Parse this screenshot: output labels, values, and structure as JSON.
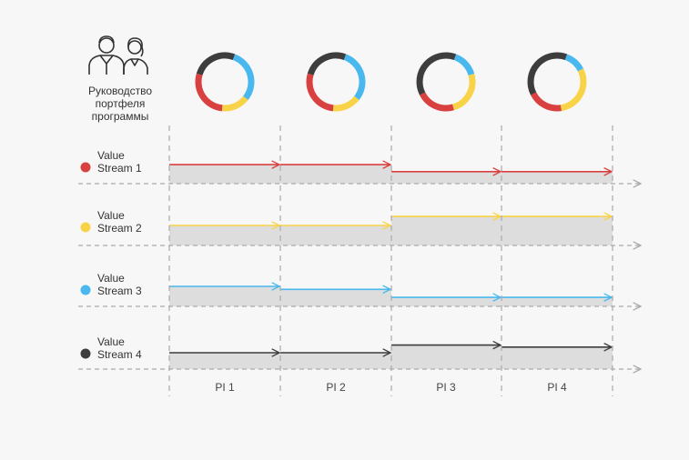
{
  "management": {
    "icon": "business-people-icon",
    "label_lines": [
      "Руководство",
      "портфеля",
      "программы"
    ]
  },
  "colors": {
    "red": "#d94040",
    "yellow": "#f9d347",
    "blue": "#48b8ee",
    "dark": "#3d3d3d",
    "band": "#dddddd",
    "dash": "#aaaaaa"
  },
  "pi_labels": [
    "PI 1",
    "PI 2",
    "PI 3",
    "PI 4"
  ],
  "donuts": [
    {
      "segments": [
        {
          "color": "blue",
          "value": 30
        },
        {
          "color": "yellow",
          "value": 16
        },
        {
          "color": "red",
          "value": 28
        },
        {
          "color": "dark",
          "value": 26
        }
      ]
    },
    {
      "segments": [
        {
          "color": "blue",
          "value": 30
        },
        {
          "color": "yellow",
          "value": 16
        },
        {
          "color": "red",
          "value": 28
        },
        {
          "color": "dark",
          "value": 26
        }
      ]
    },
    {
      "segments": [
        {
          "color": "blue",
          "value": 15
        },
        {
          "color": "yellow",
          "value": 25
        },
        {
          "color": "red",
          "value": 22
        },
        {
          "color": "dark",
          "value": 38
        }
      ]
    },
    {
      "segments": [
        {
          "color": "blue",
          "value": 12
        },
        {
          "color": "yellow",
          "value": 30
        },
        {
          "color": "red",
          "value": 20
        },
        {
          "color": "dark",
          "value": 38
        }
      ]
    }
  ],
  "streams": [
    {
      "label_lines": [
        "Value",
        "Stream 1"
      ],
      "color": "red",
      "levels": [
        0.95,
        0.95,
        0.6,
        0.6
      ]
    },
    {
      "label_lines": [
        "Value",
        "Stream 2"
      ],
      "color": "yellow",
      "levels": [
        1.0,
        1.0,
        1.45,
        1.45
      ]
    },
    {
      "label_lines": [
        "Value",
        "Stream 3"
      ],
      "color": "blue",
      "levels": [
        1.0,
        0.85,
        0.45,
        0.45
      ]
    },
    {
      "label_lines": [
        "Value",
        "Stream 4"
      ],
      "color": "dark",
      "levels": [
        0.82,
        0.82,
        1.2,
        1.1
      ]
    }
  ]
}
